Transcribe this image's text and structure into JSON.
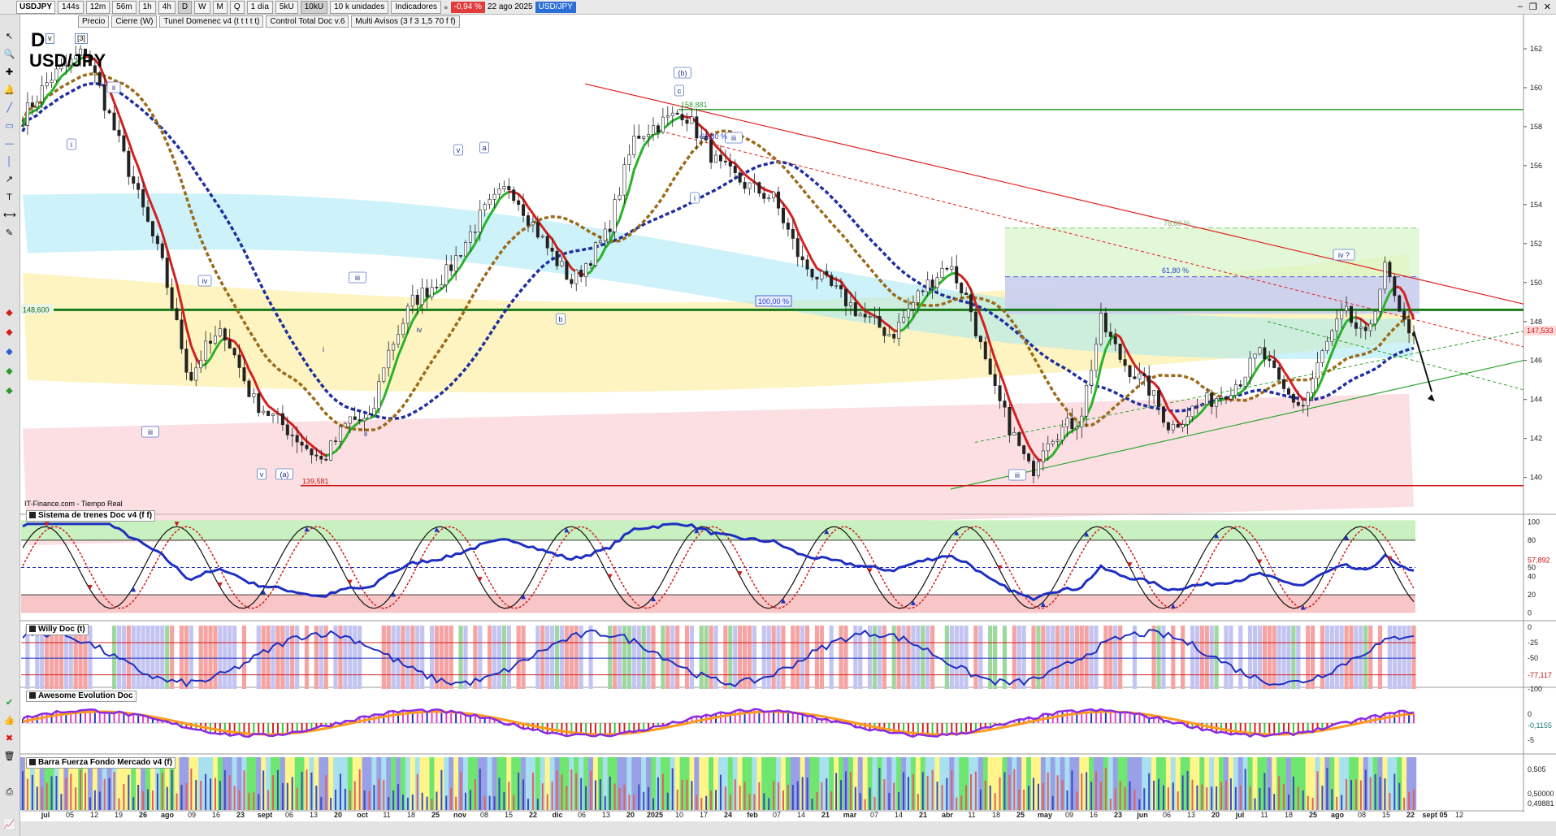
{
  "toolbar": {
    "symbol": "USDJPY",
    "timeframes": [
      "144s",
      "12m",
      "56m",
      "1h",
      "4h",
      "D",
      "W",
      "M",
      "Q"
    ],
    "active_timeframe": "D",
    "period": "1 día",
    "size1": "5kU",
    "size2": "10kU",
    "units": "10 k unidades",
    "indicators": "Indicadores",
    "change": "-0,94 %",
    "date": "22 ago 2025",
    "symbol_badge": "USD/JPY"
  },
  "indicators_bar": [
    "Precio",
    "Cierre (W)",
    "Tunel Domenec v4 (t t t t t)",
    "Control Total Doc v.6",
    "Multi Avisos (3 f 3 1,5 70 f f)"
  ],
  "chart": {
    "timeframe_letter": "D",
    "symbol_title": "USD/JPY",
    "source": "IT-Finance.com - Tiempo Real",
    "price_axis": [
      "162",
      "160",
      "158",
      "156",
      "154",
      "152",
      "150",
      "148",
      "146",
      "144",
      "142",
      "140"
    ],
    "level_green": "148,600",
    "level_red": "139,581",
    "level_top": "158,881",
    "last_price": "147,533",
    "fib_labels": [
      "61,80 %",
      "78,60 %",
      "61,80 %",
      "100,00 %"
    ],
    "wave_labels": [
      "(b)",
      "c",
      "iii",
      "a",
      "v",
      "i",
      "iv",
      "iii",
      "i",
      "b",
      "v",
      "(a)",
      "iv",
      "ii",
      "iv ?",
      "iii"
    ]
  },
  "panes": {
    "trenes": {
      "title": "Sistema de trenes Doc v4 (f f)",
      "axis": [
        "100",
        "80",
        "57,892",
        "50",
        "40",
        "20",
        "0"
      ]
    },
    "willy": {
      "title": "Willy Doc (t)",
      "axis": [
        "0",
        "-25",
        "-50",
        "-77,117",
        "-100"
      ]
    },
    "awesome": {
      "title": "Awesome Evolution Doc",
      "axis": [
        "0",
        "-0,1155",
        "-5"
      ]
    },
    "barra": {
      "title": "Barra Fuerza Fondo Mercado v4 (f)",
      "axis": [
        "0,505",
        "0,50000",
        "0,49881"
      ]
    }
  },
  "date_axis": [
    "jul",
    "05",
    "12",
    "19",
    "26",
    "ago",
    "09",
    "16",
    "23",
    "sept",
    "06",
    "13",
    "20",
    "oct",
    "11",
    "18",
    "25",
    "nov",
    "08",
    "15",
    "22",
    "dic",
    "06",
    "13",
    "20",
    "2025",
    "10",
    "17",
    "24",
    "feb",
    "07",
    "14",
    "21",
    "mar",
    "07",
    "14",
    "21",
    "abr",
    "11",
    "18",
    "25",
    "may",
    "09",
    "16",
    "23",
    "jun",
    "06",
    "13",
    "20",
    "jul",
    "11",
    "18",
    "25",
    "ago",
    "08",
    "15",
    "22",
    "sept 05",
    "12"
  ],
  "colors": {
    "bull": "#27b327",
    "bear": "#d41f1f",
    "ma_blue": "#1f2f9f",
    "ma_brown": "#9b6a1a"
  }
}
